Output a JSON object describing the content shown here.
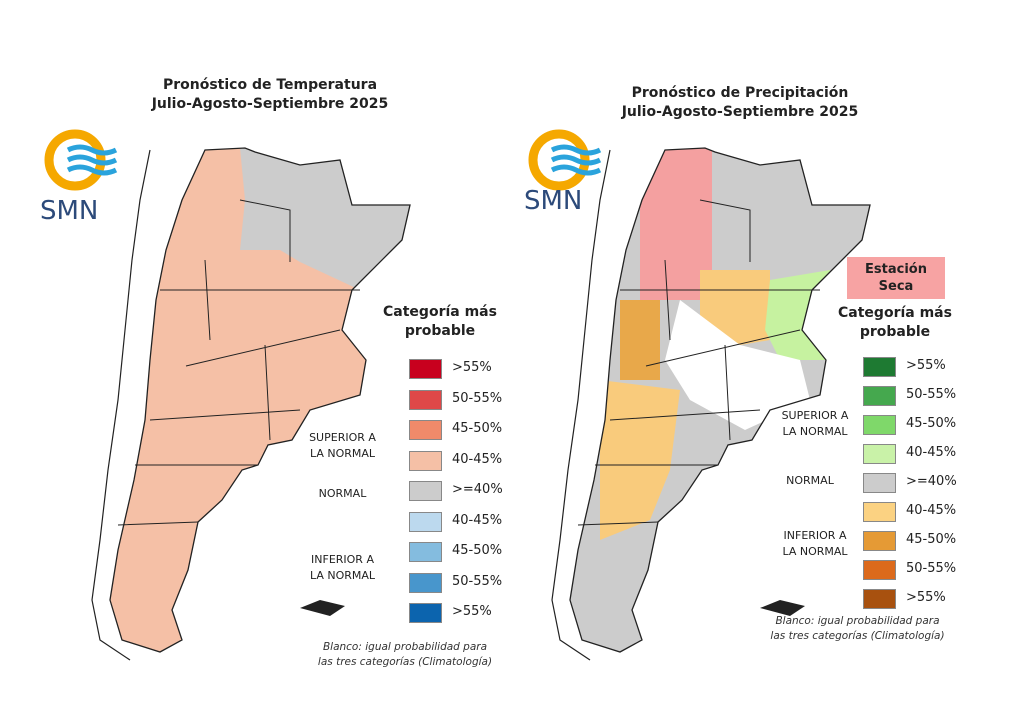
{
  "left_map": {
    "title_line1": "Pronóstico de Temperatura",
    "title_line2": "Julio-Agosto-Septiembre 2025",
    "logo": "SMN",
    "legend_title_line1": "Categoría más",
    "legend_title_line2": "probable",
    "legend": [
      {
        "label": ">55%",
        "color": "#c8001e"
      },
      {
        "label": "50-55%",
        "color": "#df4848"
      },
      {
        "label": "45-50%",
        "color": "#f08a6a"
      },
      {
        "label": "40-45%",
        "color": "#f5c0a6"
      },
      {
        "label": ">=40%",
        "color": "#cccccc"
      },
      {
        "label": "40-45%",
        "color": "#bcd9ee"
      },
      {
        "label": "45-50%",
        "color": "#84bcdf"
      },
      {
        "label": "50-55%",
        "color": "#4896cc"
      },
      {
        "label": ">55%",
        "color": "#0c64ae"
      }
    ],
    "superior_line1": "SUPERIOR A",
    "superior_line2": "LA NORMAL",
    "normal": "NORMAL",
    "inferior_line1": "INFERIOR A",
    "inferior_line2": "LA NORMAL",
    "note_line1": "Blanco: igual probabilidad para",
    "note_line2": "las tres categorías (Climatología)"
  },
  "right_map": {
    "title_line1": "Pronóstico de Precipitación",
    "title_line2": "Julio-Agosto-Septiembre 2025",
    "logo": "SMN",
    "badge_line1": "Estación",
    "badge_line2": "Seca",
    "badge_color": "#f7a3a3",
    "legend_title_line1": "Categoría más",
    "legend_title_line2": "probable",
    "legend": [
      {
        "label": ">55%",
        "color": "#1e7a32"
      },
      {
        "label": "50-55%",
        "color": "#45a84e"
      },
      {
        "label": "45-50%",
        "color": "#7fd86a"
      },
      {
        "label": "40-45%",
        "color": "#c9f2a8"
      },
      {
        "label": ">=40%",
        "color": "#cccccc"
      },
      {
        "label": "40-45%",
        "color": "#fbd282"
      },
      {
        "label": "45-50%",
        "color": "#e59a35"
      },
      {
        "label": "50-55%",
        "color": "#dc6a1c"
      },
      {
        "label": ">55%",
        "color": "#a8510f"
      }
    ],
    "superior_line1": "SUPERIOR A",
    "superior_line2": "LA NORMAL",
    "normal": "NORMAL",
    "inferior_line1": "INFERIOR A",
    "inferior_line2": "LA NORMAL",
    "note_line1": "Blanco: igual probabilidad para",
    "note_line2": "las tres categorías (Climatología)"
  },
  "colors": {
    "logo_orange": "#f5a800",
    "logo_blue": "#2aa3dc",
    "dry_red": "#f4a0a0",
    "below_orange": "#f9cb7c",
    "above_green": "#c6f2a0",
    "normal_gray": "#cccccc",
    "above_temp": "#f5c0a6"
  }
}
